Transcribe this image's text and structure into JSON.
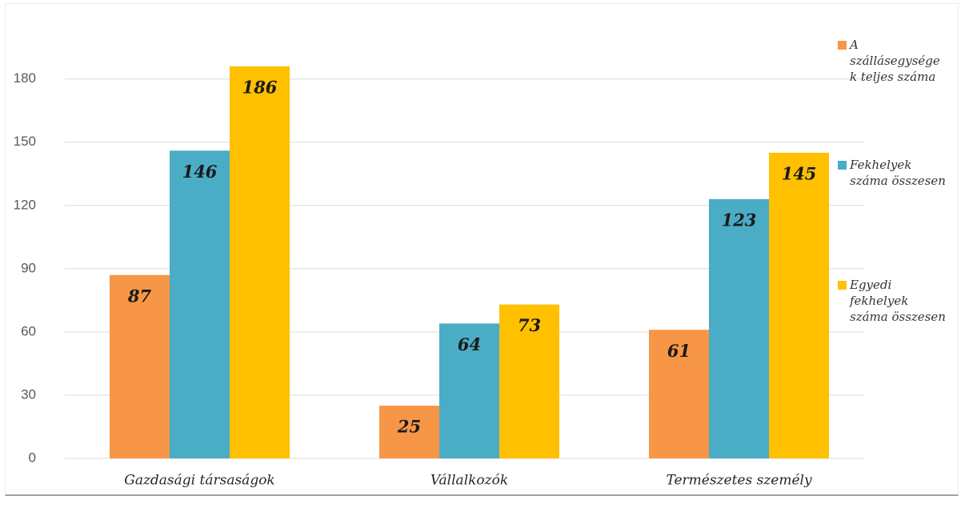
{
  "chart_data": {
    "type": "bar",
    "categories": [
      "Gazdasági társaságok",
      "Vállalkozók",
      "Természetes személy"
    ],
    "series": [
      {
        "name": "A szállásegységek teljes száma",
        "color": "#f79646",
        "values": [
          87,
          25,
          61
        ]
      },
      {
        "name": "Fekhelyek száma összesen",
        "color": "#4bacc6",
        "values": [
          146,
          64,
          123
        ]
      },
      {
        "name": "Egyedi fekhelyek száma összesen",
        "color": "#ffc000",
        "values": [
          186,
          73,
          145
        ]
      }
    ],
    "ylim": [
      0,
      200
    ],
    "yticks": [
      0,
      30,
      60,
      90,
      120,
      150,
      180
    ],
    "grid": true,
    "legend": "right"
  }
}
